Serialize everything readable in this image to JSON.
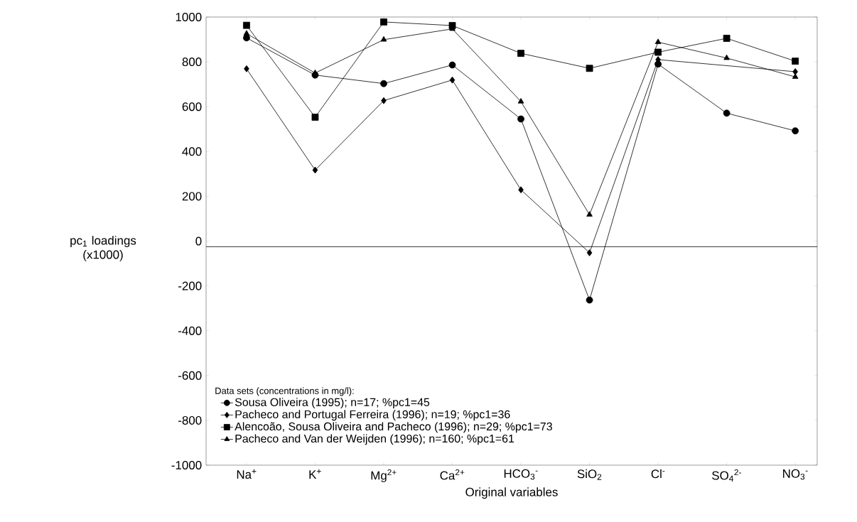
{
  "chart_data": {
    "type": "line",
    "xlabel": "Original variables",
    "ylabel": "pc$_{1}$ loadings (x1000)",
    "categories": [
      "Na$^{+}$",
      "K$^{+}$",
      "Mg$^{2+}$",
      "Ca$^{2+}$",
      "HCO$_{3}$$^{-}$",
      "SiO$_{2}$",
      "Cl$^{-}$",
      "SO$_{4}$$^{2-}$",
      "NO$_{3}$$^{-}$"
    ],
    "legend_title": "Data sets (concentrations in mg/l):",
    "series": [
      {
        "name": "Sousa Oliveira (1995); n=17; %pc1=45",
        "color": "#000000",
        "marker": "circle",
        "values": [
          907,
          741,
          703,
          786,
          545,
          -263,
          790,
          571,
          492
        ]
      },
      {
        "name": "Pacheco and Portugal Ferreira (1996); n=19; %pc1=36",
        "color": "#000000",
        "marker": "diamond",
        "values": [
          769,
          317,
          627,
          719,
          229,
          -52,
          810,
          null,
          756
        ]
      },
      {
        "name": "Alencoão, Sousa Oliveira and Pacheco (1996); n=29; %pc1=73",
        "color": "#000000",
        "marker": "square",
        "values": [
          963,
          553,
          978,
          962,
          838,
          771,
          843,
          905,
          803
        ]
      },
      {
        "name": "Pacheco and Van der Weijden (1996); n=160; %pc1=61",
        "color": "#000000",
        "marker": "triangle",
        "values": [
          926,
          750,
          899,
          947,
          623,
          118,
          888,
          817,
          733
        ]
      }
    ],
    "ylim": [
      -1000,
      1000
    ],
    "yticks": [
      -1000,
      -800,
      -600,
      -400,
      -200,
      0,
      200,
      400,
      600,
      800,
      1000
    ],
    "ref_lines": [
      {
        "axis": "y",
        "value": -25
      }
    ],
    "grid": false,
    "legend": "bottom left",
    "line_style": "solid"
  }
}
